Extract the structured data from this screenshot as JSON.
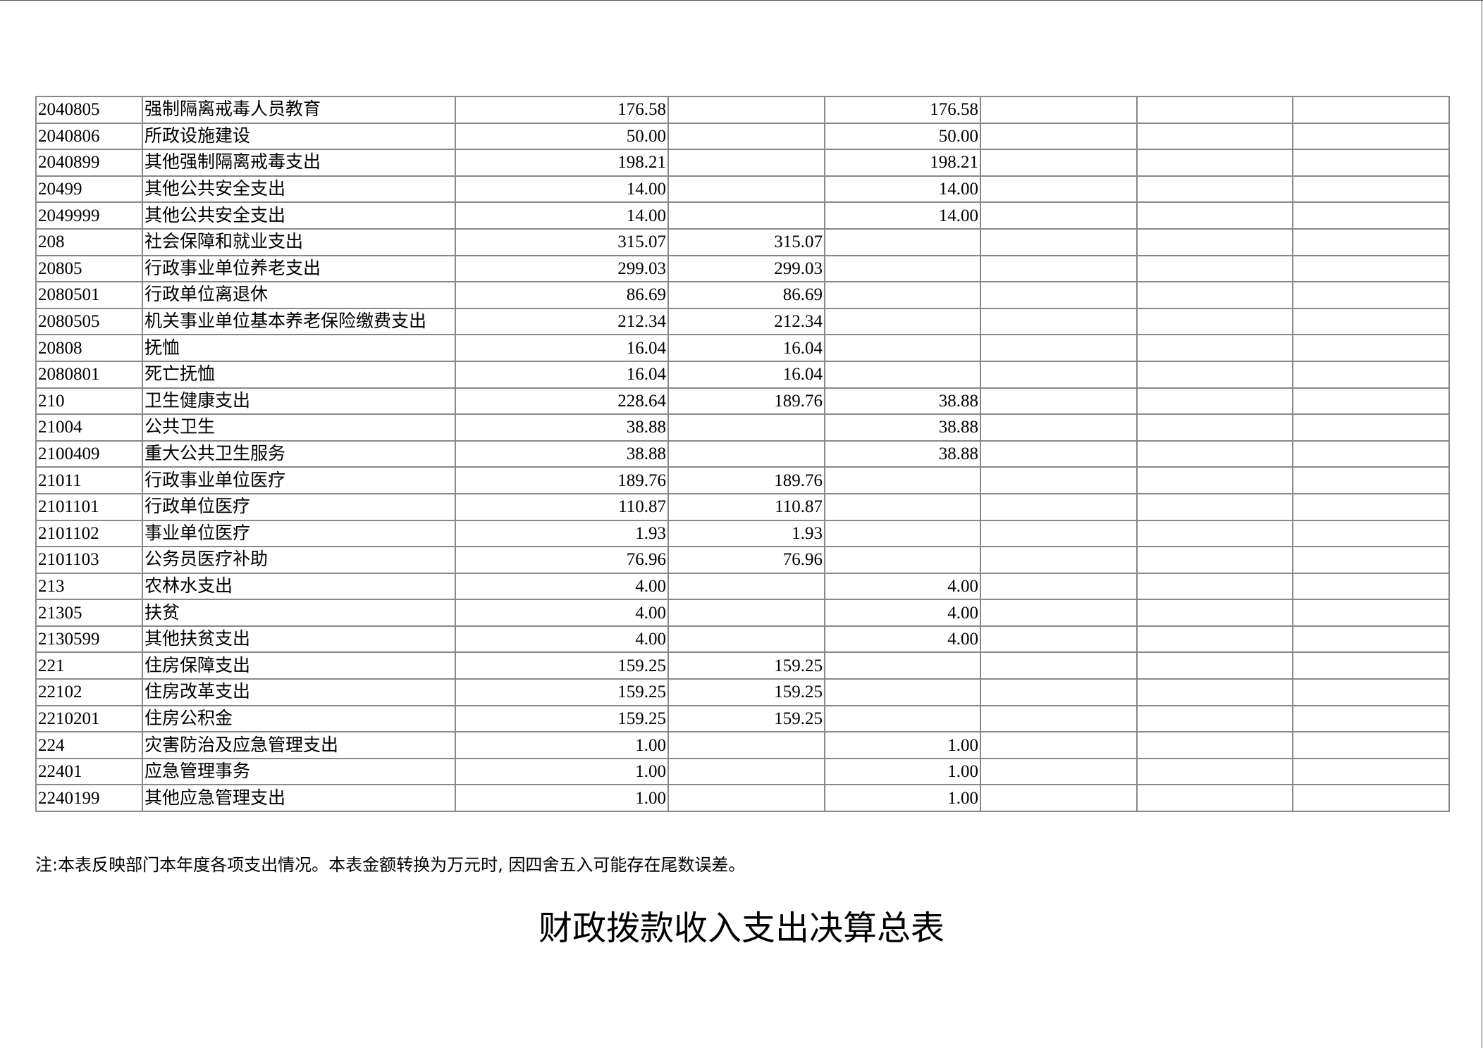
{
  "rows": [
    {
      "code": "2040805",
      "name": "强制隔离戒毒人员教育",
      "total": "176.58",
      "basic": "",
      "project": "176.58"
    },
    {
      "code": "2040806",
      "name": "所政设施建设",
      "total": "50.00",
      "basic": "",
      "project": "50.00"
    },
    {
      "code": "2040899",
      "name": "其他强制隔离戒毒支出",
      "total": "198.21",
      "basic": "",
      "project": "198.21"
    },
    {
      "code": "20499",
      "name": "其他公共安全支出",
      "total": "14.00",
      "basic": "",
      "project": "14.00"
    },
    {
      "code": "2049999",
      "name": "其他公共安全支出",
      "total": "14.00",
      "basic": "",
      "project": "14.00"
    },
    {
      "code": "208",
      "name": "社会保障和就业支出",
      "total": "315.07",
      "basic": "315.07",
      "project": ""
    },
    {
      "code": "20805",
      "name": "行政事业单位养老支出",
      "total": "299.03",
      "basic": "299.03",
      "project": ""
    },
    {
      "code": "2080501",
      "name": "行政单位离退休",
      "total": "86.69",
      "basic": "86.69",
      "project": ""
    },
    {
      "code": "2080505",
      "name": "机关事业单位基本养老保险缴费支出",
      "total": "212.34",
      "basic": "212.34",
      "project": ""
    },
    {
      "code": "20808",
      "name": "抚恤",
      "total": "16.04",
      "basic": "16.04",
      "project": ""
    },
    {
      "code": "2080801",
      "name": "死亡抚恤",
      "total": "16.04",
      "basic": "16.04",
      "project": ""
    },
    {
      "code": "210",
      "name": "卫生健康支出",
      "total": "228.64",
      "basic": "189.76",
      "project": "38.88"
    },
    {
      "code": "21004",
      "name": "公共卫生",
      "total": "38.88",
      "basic": "",
      "project": "38.88"
    },
    {
      "code": "2100409",
      "name": "重大公共卫生服务",
      "total": "38.88",
      "basic": "",
      "project": "38.88"
    },
    {
      "code": "21011",
      "name": "行政事业单位医疗",
      "total": "189.76",
      "basic": "189.76",
      "project": ""
    },
    {
      "code": "2101101",
      "name": "行政单位医疗",
      "total": "110.87",
      "basic": "110.87",
      "project": ""
    },
    {
      "code": "2101102",
      "name": "事业单位医疗",
      "total": "1.93",
      "basic": "1.93",
      "project": ""
    },
    {
      "code": "2101103",
      "name": "公务员医疗补助",
      "total": "76.96",
      "basic": "76.96",
      "project": ""
    },
    {
      "code": "213",
      "name": "农林水支出",
      "total": "4.00",
      "basic": "",
      "project": "4.00"
    },
    {
      "code": "21305",
      "name": "扶贫",
      "total": "4.00",
      "basic": "",
      "project": "4.00"
    },
    {
      "code": "2130599",
      "name": "其他扶贫支出",
      "total": "4.00",
      "basic": "",
      "project": "4.00"
    },
    {
      "code": "221",
      "name": "住房保障支出",
      "total": "159.25",
      "basic": "159.25",
      "project": ""
    },
    {
      "code": "22102",
      "name": "住房改革支出",
      "total": "159.25",
      "basic": "159.25",
      "project": ""
    },
    {
      "code": "2210201",
      "name": "住房公积金",
      "total": "159.25",
      "basic": "159.25",
      "project": ""
    },
    {
      "code": "224",
      "name": "灾害防治及应急管理支出",
      "total": "1.00",
      "basic": "",
      "project": "1.00"
    },
    {
      "code": "22401",
      "name": "应急管理事务",
      "total": "1.00",
      "basic": "",
      "project": "1.00"
    },
    {
      "code": "2240199",
      "name": "其他应急管理支出",
      "total": "1.00",
      "basic": "",
      "project": "1.00"
    }
  ],
  "note": "注:本表反映部门本年度各项支出情况。本表金额转换为万元时, 因四舍五入可能存在尾数误差。",
  "next_title": "财政拨款收入支出决算总表"
}
